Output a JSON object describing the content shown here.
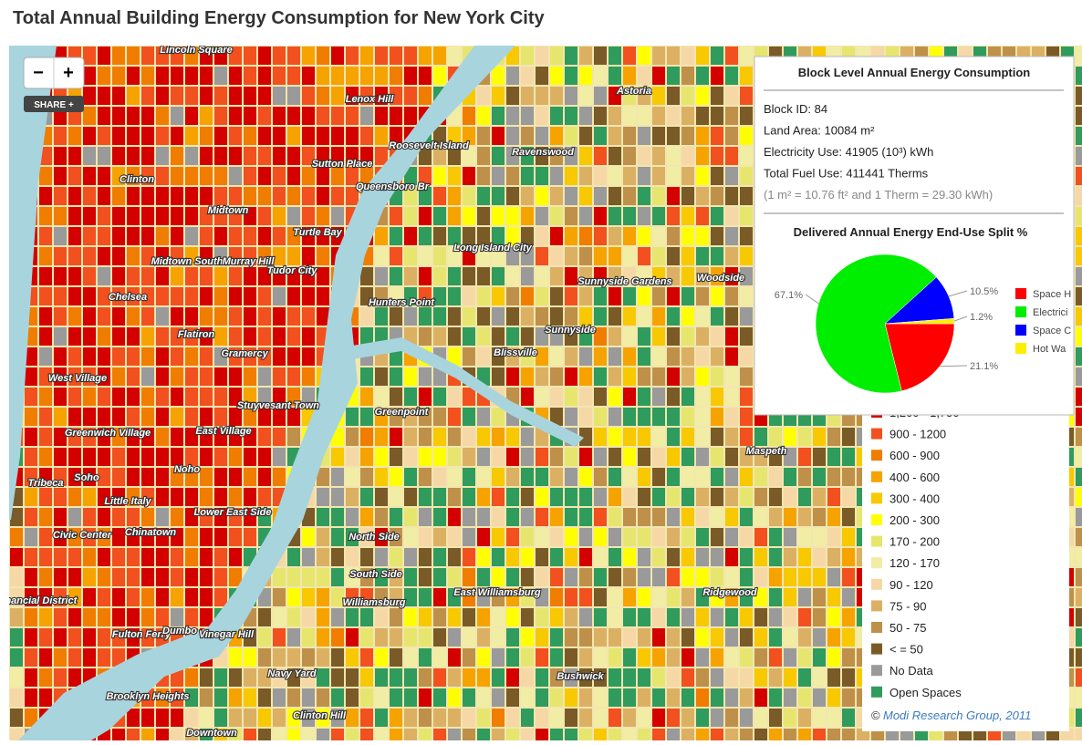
{
  "header": {
    "title": "Total Annual Building Energy Consumption for New York City"
  },
  "controls": {
    "zoom_out": "−",
    "zoom_in": "+",
    "share": "SHARE +"
  },
  "popup": {
    "title": "Block Level Annual Energy Consumption",
    "info": [
      "Block ID: 84",
      "Land Area: 10084 m²",
      "Electricity Use: 41905 (10³) kWh",
      "Total Fuel Use: 411441 Therms"
    ],
    "note": "(1 m² = 10.76 ft² and 1 Therm = 29.30 kWh)",
    "pie": {
      "title": "Delivered Annual Energy End-Use Split %",
      "names": [
        "Space H",
        "Electrici",
        "Space C",
        "Hot Wa"
      ],
      "values": [
        21.1,
        67.1,
        10.5,
        1.2
      ],
      "value_labels": [
        "21.1%",
        "67.1%",
        "10.5%",
        "1.2%"
      ],
      "colors": [
        "#ff0000",
        "#00ee00",
        "#0000ff",
        "#ffee00"
      ]
    }
  },
  "legend": {
    "items": [
      {
        "label": "1,200 - 1,750",
        "color": "#d40000"
      },
      {
        "label": "900 - 1200",
        "color": "#f2501e"
      },
      {
        "label": "600 - 900",
        "color": "#f07d00"
      },
      {
        "label": "400 - 600",
        "color": "#f6a300"
      },
      {
        "label": "300 - 400",
        "color": "#f8c800"
      },
      {
        "label": "200 - 300",
        "color": "#ffff00"
      },
      {
        "label": "170 - 200",
        "color": "#e6e66e"
      },
      {
        "label": "120 - 170",
        "color": "#f1eda4"
      },
      {
        "label": "90 - 120",
        "color": "#f6d8a6"
      },
      {
        "label": "75 - 90",
        "color": "#dcb063"
      },
      {
        "label": "50 - 75",
        "color": "#bf904a"
      },
      {
        "label": "< = 50",
        "color": "#7a5a26"
      },
      {
        "label": "No Data",
        "color": "#9a9a9a"
      },
      {
        "label": "Open Spaces",
        "color": "#2f9b5c"
      }
    ],
    "credit_symbol": "©",
    "credit": "Modi Research Group, 2011"
  },
  "map_labels": [
    "Lincoln Square",
    "Lenox Hill",
    "Roosevelt Island",
    "Astoria",
    "Sutton Place",
    "Ravenswood",
    "Queensboro Br",
    "Clinton",
    "Midtown",
    "Turtle Bay",
    "Long Island City",
    "Midtown South",
    "Murray Hill",
    "Tudor City",
    "Sunnyside Gardens",
    "Woodside",
    "Chelsea",
    "Hunters Point",
    "Sunnyside",
    "Flatiron",
    "Gramercy",
    "Blissville",
    "West Village",
    "Stuyvesant Town",
    "Greenpoint",
    "Greenwich Village",
    "East Village",
    "Maspeth",
    "Noho",
    "Soho",
    "Tribeca",
    "Little Italy",
    "Lower East Side",
    "Civic Center",
    "Chinatown",
    "North Side",
    "South Side",
    "Financial District",
    "East Williamsburg",
    "Ridgewood",
    "Williamsburg",
    "Fulton Ferry",
    "Dumbo",
    "Vinegar Hill",
    "Navy Yard",
    "Bushwick",
    "Brooklyn Heights",
    "Clinton Hill",
    "Downtown"
  ]
}
